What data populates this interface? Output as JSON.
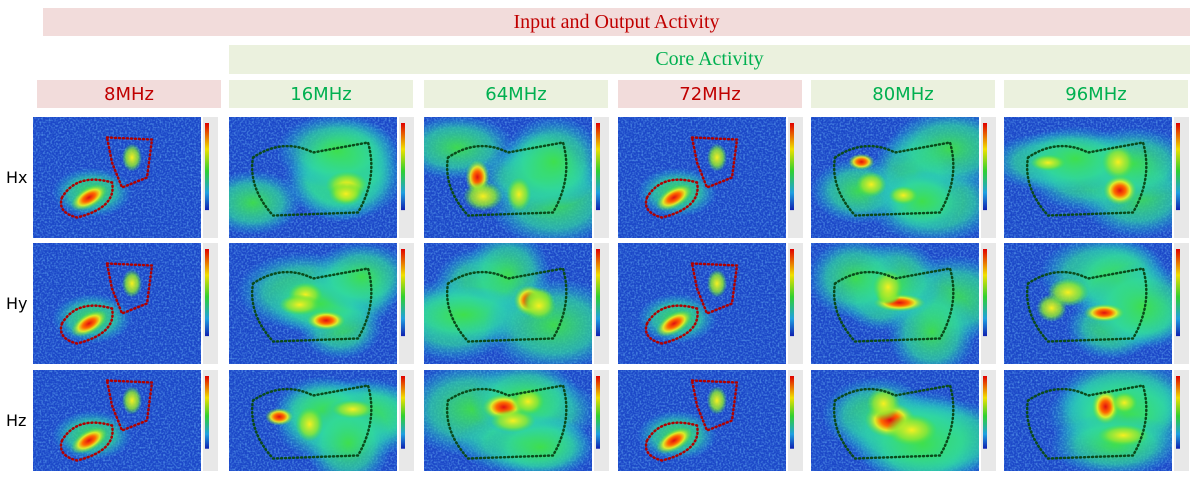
{
  "header": {
    "title": "Input and Output Activity",
    "title_color": "#c00000",
    "title_fill": "#f2dcdb",
    "subtitle": "Core Activity",
    "subtitle_color": "#00b050",
    "subtitle_fill": "#ebf1de"
  },
  "columns": [
    {
      "label": "8MHz",
      "color": "#c00000",
      "fill": "#f2dcdb"
    },
    {
      "label": "16MHz",
      "color": "#00b050",
      "fill": "#ebf1de"
    },
    {
      "label": "64MHz",
      "color": "#00b050",
      "fill": "#ebf1de"
    },
    {
      "label": "72MHz",
      "color": "#c00000",
      "fill": "#f2dcdb"
    },
    {
      "label": "80MHz",
      "color": "#00b050",
      "fill": "#ebf1de"
    },
    {
      "label": "96MHz",
      "color": "#00b050",
      "fill": "#ebf1de"
    }
  ],
  "rows": [
    "Hx",
    "Hy",
    "Hz"
  ]
}
